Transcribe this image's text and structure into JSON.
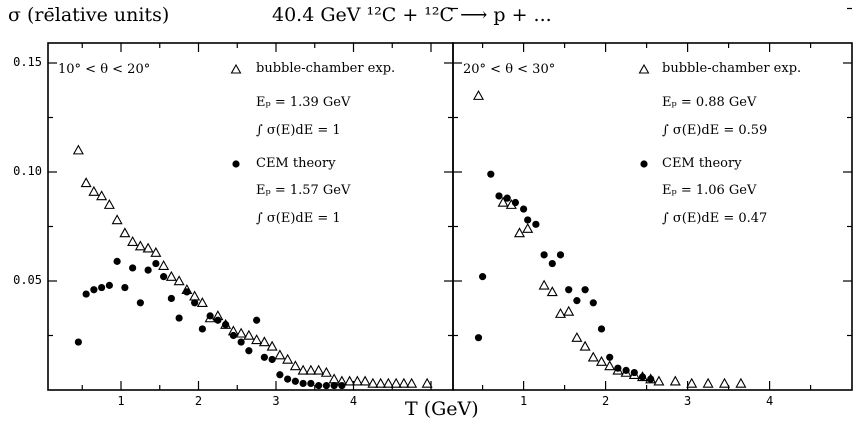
{
  "header": {
    "ylabel": "σ (relative units)",
    "title": "40.4 GeV ¹²C + ¹²C ⟶ p + ..."
  },
  "xlabel": "T (GeV)",
  "chart_data": [
    {
      "type": "scatter",
      "panel_label": "10° < θ < 20°",
      "xlabel": "T (GeV)",
      "ylabel": "σ (relative units)",
      "xlim": [
        0.2,
        5.2
      ],
      "ylim": [
        0,
        0.18
      ],
      "y_ticks": [
        "0.05",
        "0.10",
        "0.15"
      ],
      "x_ticks": [
        "1",
        "2",
        "3",
        "4"
      ],
      "legend": {
        "exp_label": "bubble-chamber exp.",
        "exp_energy": "Eₚ = 1.39 GeV",
        "exp_integral": "∫ σ(E)dE = 1",
        "theory_label": "CEM theory",
        "theory_energy": "Eₚ = 1.57 GeV",
        "theory_integral": "∫ σ(E)dE = 1"
      },
      "series": [
        {
          "name": "bubble-chamber exp.",
          "marker": "triangle",
          "x": [
            0.45,
            0.55,
            0.65,
            0.75,
            0.85,
            0.95,
            1.05,
            1.15,
            1.25,
            1.35,
            1.45,
            1.55,
            1.65,
            1.75,
            1.85,
            1.95,
            2.05,
            2.15,
            2.25,
            2.35,
            2.45,
            2.55,
            2.65,
            2.75,
            2.85,
            2.95,
            3.05,
            3.15,
            3.25,
            3.35,
            3.45,
            3.55,
            3.65,
            3.75,
            3.85,
            3.95,
            4.05,
            4.15,
            4.25,
            4.35,
            4.45,
            4.55,
            4.65,
            4.75,
            4.95
          ],
          "y": [
            0.11,
            0.095,
            0.091,
            0.089,
            0.085,
            0.078,
            0.072,
            0.068,
            0.066,
            0.065,
            0.063,
            0.057,
            0.052,
            0.05,
            0.046,
            0.043,
            0.04,
            0.033,
            0.034,
            0.03,
            0.027,
            0.026,
            0.025,
            0.023,
            0.022,
            0.02,
            0.016,
            0.014,
            0.011,
            0.009,
            0.009,
            0.009,
            0.008,
            0.005,
            0.004,
            0.004,
            0.004,
            0.004,
            0.003,
            0.003,
            0.003,
            0.003,
            0.003,
            0.003,
            0.003
          ]
        },
        {
          "name": "CEM theory",
          "marker": "circle",
          "x": [
            0.45,
            0.55,
            0.65,
            0.75,
            0.85,
            0.95,
            1.05,
            1.15,
            1.25,
            1.35,
            1.45,
            1.55,
            1.65,
            1.75,
            1.85,
            1.95,
            2.05,
            2.15,
            2.25,
            2.35,
            2.45,
            2.55,
            2.65,
            2.75,
            2.85,
            2.95,
            3.05,
            3.15,
            3.25,
            3.35,
            3.45,
            3.55,
            3.65,
            3.75,
            3.85
          ],
          "y": [
            0.022,
            0.044,
            0.046,
            0.047,
            0.048,
            0.059,
            0.047,
            0.056,
            0.04,
            0.055,
            0.058,
            0.052,
            0.042,
            0.033,
            0.045,
            0.04,
            0.028,
            0.034,
            0.032,
            0.03,
            0.025,
            0.022,
            0.018,
            0.032,
            0.015,
            0.014,
            0.007,
            0.005,
            0.004,
            0.003,
            0.003,
            0.002,
            0.002,
            0.002,
            0.002
          ]
        }
      ]
    },
    {
      "type": "scatter",
      "panel_label": "20° < θ < 30°",
      "xlabel": "T (GeV)",
      "xlim": [
        0.2,
        4.9
      ],
      "ylim": [
        0,
        0.18
      ],
      "x_ticks": [
        "1",
        "2",
        "3",
        "4"
      ],
      "legend": {
        "exp_label": "bubble-chamber exp.",
        "exp_energy": "Eₚ = 0.88 GeV",
        "exp_integral": "∫ σ(E)dE = 0.59",
        "theory_label": "CEM theory",
        "theory_energy": "Eₚ = 1.06 GeV",
        "theory_integral": "∫ σ(E)dE = 0.47"
      },
      "series": [
        {
          "name": "bubble-chamber exp.",
          "marker": "triangle",
          "x": [
            0.45,
            0.75,
            0.85,
            0.95,
            1.05,
            1.25,
            1.35,
            1.45,
            1.55,
            1.65,
            1.75,
            1.85,
            1.95,
            2.05,
            2.15,
            2.25,
            2.35,
            2.45,
            2.55,
            2.65,
            2.85,
            3.05,
            3.25,
            3.45,
            3.65
          ],
          "y": [
            0.135,
            0.086,
            0.085,
            0.072,
            0.074,
            0.048,
            0.045,
            0.035,
            0.036,
            0.024,
            0.02,
            0.015,
            0.013,
            0.011,
            0.009,
            0.008,
            0.007,
            0.006,
            0.005,
            0.004,
            0.004,
            0.003,
            0.003,
            0.003,
            0.003
          ]
        },
        {
          "name": "CEM theory",
          "marker": "circle",
          "x": [
            0.45,
            0.5,
            0.6,
            0.7,
            0.8,
            0.9,
            1.0,
            1.05,
            1.15,
            1.25,
            1.35,
            1.45,
            1.55,
            1.65,
            1.75,
            1.85,
            1.95,
            2.05,
            2.15,
            2.25,
            2.35,
            2.45,
            2.55
          ],
          "y": [
            0.024,
            0.052,
            0.099,
            0.089,
            0.088,
            0.086,
            0.083,
            0.078,
            0.076,
            0.062,
            0.058,
            0.062,
            0.046,
            0.041,
            0.046,
            0.04,
            0.028,
            0.015,
            0.01,
            0.009,
            0.008,
            0.006,
            0.005
          ]
        }
      ]
    }
  ]
}
